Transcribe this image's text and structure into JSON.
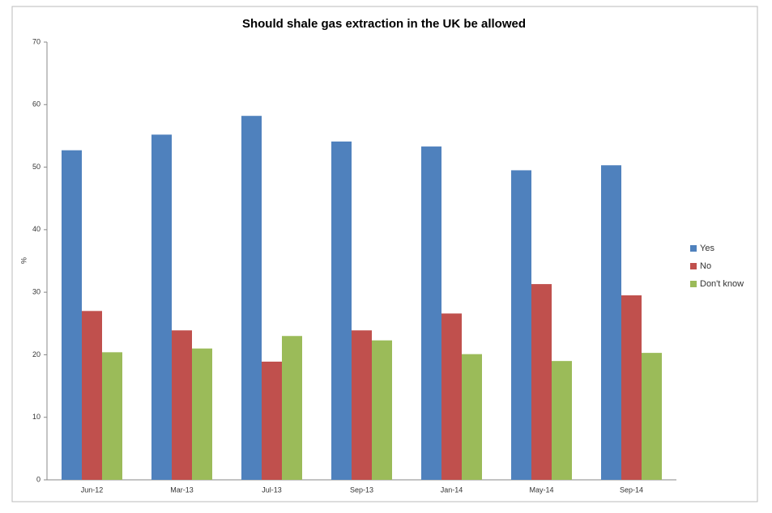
{
  "chart_data": {
    "type": "bar",
    "title": "Should shale gas extraction in the UK be allowed",
    "y_label": "%",
    "categories": [
      "Jun-12",
      "Mar-13",
      "Jul-13",
      "Sep-13",
      "Jan-14",
      "May-14",
      "Sep-14"
    ],
    "series": [
      {
        "name": "Yes",
        "color": "#4f81bd",
        "values": [
          52.7,
          55.2,
          58.2,
          54.1,
          53.3,
          49.5,
          50.3
        ]
      },
      {
        "name": "No",
        "color": "#c0504d",
        "values": [
          27.0,
          23.9,
          18.9,
          23.9,
          26.6,
          31.3,
          29.5
        ]
      },
      {
        "name": "Don't know",
        "color": "#9bbb59",
        "values": [
          20.4,
          21.0,
          23.0,
          22.3,
          20.1,
          19.0,
          20.3
        ]
      }
    ],
    "ylim": [
      0,
      70
    ],
    "yticks": [
      0,
      10,
      20,
      30,
      40,
      50,
      60,
      70
    ],
    "grid": false,
    "legend": "right"
  }
}
